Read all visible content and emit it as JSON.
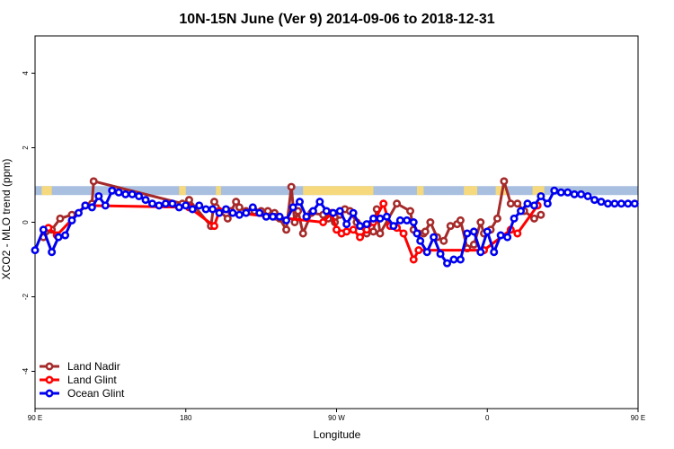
{
  "chart_data": {
    "type": "line",
    "title": "10N-15N June (Ver 9)   2014-09-06 to 2018-12-31",
    "xlabel": "Longitude",
    "ylabel": "XCO2 - MLO trend (ppm)",
    "xlim": [
      -180,
      180
    ],
    "ylim": [
      -5,
      5
    ],
    "x_ticks": [
      {
        "value": -180,
        "label": "90 E"
      },
      {
        "value": -90,
        "label": "180"
      },
      {
        "value": 0,
        "label": "90 W"
      },
      {
        "value": 90,
        "label": "0"
      },
      {
        "value": 180,
        "label": "90 E"
      },
      {
        "value": 270,
        "label": "180"
      }
    ],
    "y_ticks": [
      {
        "value": -4,
        "label": "-4"
      },
      {
        "value": -2,
        "label": "-2"
      },
      {
        "value": 0,
        "label": "0"
      },
      {
        "value": 2,
        "label": "2"
      },
      {
        "value": 4,
        "label": "4"
      }
    ],
    "land_band": {
      "y_low": 0.73,
      "y_high": 0.97,
      "ocean_color": "#a8bfe0",
      "land_color": "#f5d97c"
    },
    "legend_position": "bottom-left",
    "series": [
      {
        "name": "Land Nadir",
        "color": "#a52a2a",
        "x": [
          -175,
          -170,
          -165,
          -158,
          -146,
          -145,
          -92,
          -88,
          -75,
          -73,
          -72,
          -70,
          -65,
          -63,
          -60,
          -58,
          -54,
          -51,
          -49,
          -45,
          -41,
          -37,
          -36,
          -34,
          -30,
          -27,
          -25,
          -23,
          -20,
          -15,
          -8,
          -5,
          -1,
          2,
          5,
          8,
          12,
          18,
          22,
          24,
          26,
          36,
          44,
          46,
          49,
          52,
          53,
          56,
          60,
          64,
          68,
          72,
          74,
          78,
          82,
          86,
          88,
          92,
          96,
          100,
          104,
          108,
          112,
          118,
          122
        ],
        "y": [
          -0.4,
          -0.2,
          0.1,
          0.2,
          0.5,
          1.1,
          0.5,
          0.6,
          -0.1,
          0.55,
          0.4,
          0.3,
          0.1,
          0.3,
          0.55,
          0.4,
          0.3,
          0.3,
          0.3,
          0.3,
          0.3,
          0.25,
          0.15,
          0.1,
          -0.2,
          0.95,
          0.0,
          0.3,
          -0.3,
          0.25,
          0.2,
          0.1,
          0.0,
          0.2,
          0.35,
          0.3,
          0.0,
          -0.3,
          -0.25,
          0.35,
          -0.3,
          0.5,
          0.3,
          -0.2,
          -0.3,
          -0.3,
          -0.25,
          0.0,
          -0.4,
          -0.5,
          -0.1,
          -0.05,
          0.05,
          -0.7,
          -0.6,
          0.0,
          -0.3,
          -0.2,
          0.1,
          1.1,
          0.5,
          0.5,
          0.3,
          0.1,
          0.2
        ]
      },
      {
        "name": "Land Glint",
        "color": "#ff0000",
        "x": [
          -172,
          -167,
          -150,
          -88,
          -73,
          -70,
          -8,
          -3,
          0,
          3,
          6,
          10,
          14,
          18,
          22,
          28,
          32,
          36,
          40,
          46,
          49,
          88,
          104,
          108,
          120
        ],
        "y": [
          -0.15,
          -0.35,
          0.45,
          0.4,
          -0.1,
          0.3,
          0.0,
          0.25,
          -0.2,
          -0.3,
          -0.25,
          -0.2,
          -0.4,
          -0.2,
          0.0,
          0.5,
          -0.1,
          -0.15,
          -0.3,
          -1.0,
          -0.75,
          -0.75,
          -0.2,
          -0.3,
          0.45
        ]
      },
      {
        "name": "Ocean Glint",
        "color": "#0000ee",
        "x": [
          -180,
          -175,
          -170,
          -166,
          -162,
          -158,
          -154,
          -150,
          -146,
          -142,
          -138,
          -134,
          -130,
          -126,
          -122,
          -118,
          -114,
          -110,
          -106,
          -102,
          -98,
          -94,
          -90,
          -86,
          -82,
          -78,
          -74,
          -70,
          -66,
          -62,
          -58,
          -54,
          -50,
          -46,
          -42,
          -38,
          -34,
          -30,
          -26,
          -22,
          -18,
          -14,
          -10,
          -6,
          -2,
          2,
          6,
          10,
          14,
          18,
          22,
          26,
          30,
          34,
          38,
          42,
          46,
          48,
          50,
          54,
          58,
          62,
          66,
          70,
          74,
          78,
          82,
          86,
          90,
          94,
          98,
          102,
          106,
          110,
          114,
          118,
          122,
          126,
          130,
          134,
          138,
          142,
          146,
          150,
          154,
          158,
          162,
          166,
          170,
          174,
          178
        ],
        "y": [
          -0.75,
          -0.2,
          -0.8,
          -0.4,
          -0.35,
          0.05,
          0.25,
          0.45,
          0.4,
          0.7,
          0.45,
          0.85,
          0.8,
          0.75,
          0.75,
          0.7,
          0.6,
          0.5,
          0.45,
          0.5,
          0.5,
          0.4,
          0.45,
          0.35,
          0.45,
          0.35,
          0.35,
          0.25,
          0.35,
          0.25,
          0.2,
          0.25,
          0.4,
          0.25,
          0.15,
          0.15,
          0.15,
          0.05,
          0.4,
          0.55,
          0.15,
          0.3,
          0.55,
          0.3,
          0.25,
          0.3,
          -0.05,
          0.25,
          -0.1,
          -0.05,
          0.1,
          0.1,
          0.15,
          -0.1,
          0.05,
          0.05,
          0.0,
          -0.3,
          -0.5,
          -0.8,
          -0.4,
          -0.85,
          -1.1,
          -1.0,
          -1.0,
          -0.3,
          -0.25,
          -0.8,
          -0.25,
          -0.8,
          -0.35,
          -0.4,
          0.1,
          0.3,
          0.5,
          0.45,
          0.7,
          0.5,
          0.85,
          0.8,
          0.8,
          0.75,
          0.75,
          0.7,
          0.6,
          0.55,
          0.5,
          0.5,
          0.5,
          0.5,
          0.5
        ]
      }
    ]
  }
}
